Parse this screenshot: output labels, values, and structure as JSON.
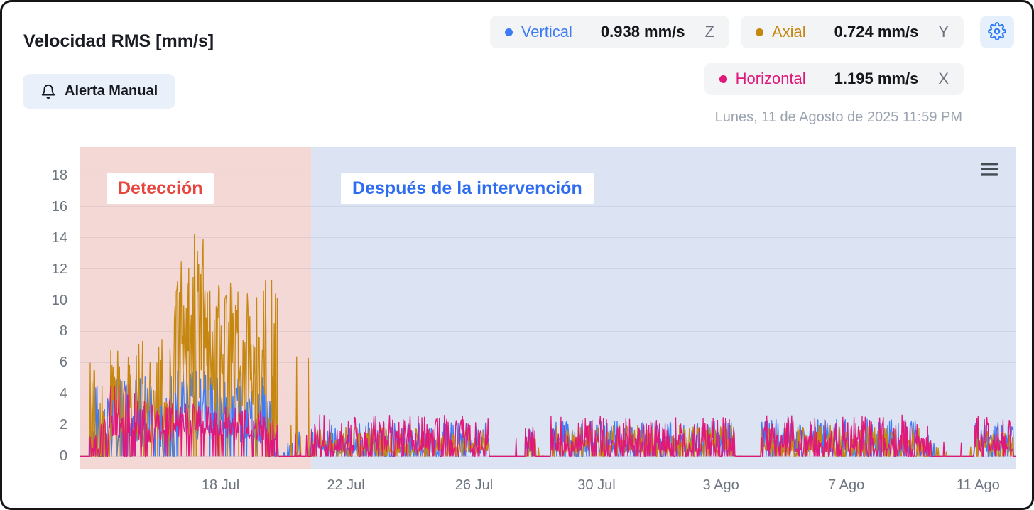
{
  "header": {
    "title": "Velocidad RMS [mm/s]",
    "alert_button_label": "Alerta Manual",
    "timestamp": "Lunes, 11 de Agosto de 2025 11:59 PM"
  },
  "legend": [
    {
      "name": "Vertical",
      "value": "0.938 mm/s",
      "axis": "Z",
      "color": "#3e7cf6"
    },
    {
      "name": "Axial",
      "value": "0.724 mm/s",
      "axis": "Y",
      "color": "#c5870f"
    },
    {
      "name": "Horizontal",
      "value": "1.195 mm/s",
      "axis": "X",
      "color": "#e0187b"
    }
  ],
  "icons": {
    "settings": "gear",
    "alert": "bell",
    "chart_menu": "hamburger-menu"
  },
  "colors": {
    "accent_blue": "#2f7df6",
    "badge_bg": "#f3f4f6",
    "alert_btn_bg": "#e9f0fa",
    "gear_btn_bg": "#e6f0fd",
    "muted_text": "#6d7580"
  },
  "chart_data": {
    "type": "line",
    "title": "Velocidad RMS [mm/s]",
    "ylabel": "mm/s",
    "units": "mm/s",
    "grid": true,
    "legend_position": "top-right",
    "ylim": [
      0,
      18
    ],
    "y_top": 19.8,
    "y_bottom": -0.8,
    "yticks": [
      0,
      2,
      4,
      6,
      8,
      10,
      12,
      14,
      16,
      18
    ],
    "xticks": [
      {
        "label": "18 Jul",
        "x": 0.15
      },
      {
        "label": "22 Jul",
        "x": 0.284
      },
      {
        "label": "26 Jul",
        "x": 0.421
      },
      {
        "label": "30 Jul",
        "x": 0.552
      },
      {
        "label": "3 Ago",
        "x": 0.685
      },
      {
        "label": "7 Ago",
        "x": 0.819
      },
      {
        "label": "11 Ago",
        "x": 0.96
      }
    ],
    "regions": [
      {
        "label": "Detección",
        "x0": 0,
        "x1": 0.247,
        "fill": "#f3d8d6",
        "label_color": "#e8453e"
      },
      {
        "label": "Después de la intervención",
        "x0": 0.247,
        "x1": 1,
        "fill": "#dce4f3",
        "label_color": "#2e6cf0"
      }
    ],
    "series": [
      {
        "name": "Vertical",
        "key": "v",
        "color": "#3e7cf6",
        "current_value": "0.938 mm/s",
        "axis": "Z"
      },
      {
        "name": "Axial",
        "key": "a",
        "color": "#c5870f",
        "current_value": "0.724 mm/s",
        "axis": "Y"
      },
      {
        "name": "Horizontal",
        "key": "h",
        "color": "#e0187b",
        "current_value": "1.195 mm/s",
        "axis": "X"
      }
    ],
    "sample_count": 1500,
    "segments": [
      {
        "x0": 0.01,
        "x1": 0.032,
        "density": 0.55,
        "skew": 1.0,
        "v": [
          0.2,
          4.6
        ],
        "a": [
          0.2,
          6.4
        ],
        "h": [
          0.2,
          2.4
        ]
      },
      {
        "x0": 0.032,
        "x1": 0.062,
        "density": 0.8,
        "skew": 1.2,
        "v": [
          0.6,
          5.0
        ],
        "a": [
          1.0,
          6.8
        ],
        "h": [
          1.2,
          4.6
        ]
      },
      {
        "x0": 0.062,
        "x1": 0.1,
        "density": 0.78,
        "skew": 1.2,
        "v": [
          0.6,
          5.2
        ],
        "a": [
          1.0,
          7.6
        ],
        "h": [
          0.8,
          3.8
        ]
      },
      {
        "x0": 0.1,
        "x1": 0.138,
        "density": 0.9,
        "skew": 1.0,
        "v": [
          1.0,
          5.6
        ],
        "a": [
          3.0,
          14.2
        ],
        "h": [
          1.2,
          3.4
        ]
      },
      {
        "x0": 0.138,
        "x1": 0.165,
        "density": 0.88,
        "skew": 1.1,
        "v": [
          1.0,
          5.2
        ],
        "a": [
          2.5,
          11.6
        ],
        "h": [
          1.2,
          3.2
        ]
      },
      {
        "x0": 0.165,
        "x1": 0.198,
        "density": 0.86,
        "skew": 1.1,
        "v": [
          0.8,
          5.4
        ],
        "a": [
          2.0,
          10.8
        ],
        "h": [
          1.0,
          3.2
        ]
      },
      {
        "x0": 0.198,
        "x1": 0.212,
        "density": 0.6,
        "skew": 1.1,
        "v": [
          0.4,
          4.0
        ],
        "a": [
          1.0,
          11.3
        ],
        "h": [
          0.5,
          2.6
        ]
      },
      {
        "x0": 0.212,
        "x1": 0.247,
        "density": 0.1,
        "skew": 1.5,
        "v": [
          0.0,
          2.0
        ],
        "a": [
          0.0,
          6.5
        ],
        "h": [
          0.0,
          2.0
        ]
      },
      {
        "x0": 0.247,
        "x1": 0.437,
        "density": 0.8,
        "skew": 1.6,
        "v": [
          0.2,
          2.2
        ],
        "a": [
          0.2,
          1.9
        ],
        "h": [
          0.3,
          2.7
        ]
      },
      {
        "x0": 0.437,
        "x1": 0.476,
        "density": 0.02,
        "skew": 2.0,
        "v": [
          0.0,
          0.8
        ],
        "a": [
          0.0,
          0.7
        ],
        "h": [
          0.0,
          1.2
        ]
      },
      {
        "x0": 0.476,
        "x1": 0.487,
        "density": 0.7,
        "skew": 1.2,
        "v": [
          0.2,
          1.8
        ],
        "a": [
          0.2,
          1.3
        ],
        "h": [
          0.3,
          2.3
        ]
      },
      {
        "x0": 0.487,
        "x1": 0.503,
        "density": 0.02,
        "skew": 2.0,
        "v": [
          0.0,
          0.8
        ],
        "a": [
          0.0,
          0.7
        ],
        "h": [
          0.0,
          1.2
        ]
      },
      {
        "x0": 0.503,
        "x1": 0.7,
        "density": 0.8,
        "skew": 1.6,
        "v": [
          0.2,
          2.3
        ],
        "a": [
          0.2,
          2.0
        ],
        "h": [
          0.3,
          2.6
        ]
      },
      {
        "x0": 0.7,
        "x1": 0.728,
        "density": 0.03,
        "skew": 2.0,
        "v": [
          0.0,
          0.8
        ],
        "a": [
          0.0,
          0.7
        ],
        "h": [
          0.0,
          1.2
        ]
      },
      {
        "x0": 0.728,
        "x1": 0.9,
        "density": 0.8,
        "skew": 1.6,
        "v": [
          0.2,
          2.4
        ],
        "a": [
          0.2,
          2.0
        ],
        "h": [
          0.3,
          2.7
        ]
      },
      {
        "x0": 0.9,
        "x1": 0.913,
        "density": 0.45,
        "skew": 1.5,
        "v": [
          0.1,
          1.6
        ],
        "a": [
          0.1,
          1.2
        ],
        "h": [
          0.2,
          2.0
        ]
      },
      {
        "x0": 0.913,
        "x1": 0.956,
        "density": 0.03,
        "skew": 2.0,
        "v": [
          0.0,
          0.8
        ],
        "a": [
          0.0,
          0.7
        ],
        "h": [
          0.0,
          1.2
        ]
      },
      {
        "x0": 0.956,
        "x1": 0.998,
        "density": 0.85,
        "skew": 1.4,
        "v": [
          0.2,
          2.2
        ],
        "a": [
          0.2,
          1.7
        ],
        "h": [
          0.3,
          2.6
        ]
      }
    ],
    "spikes": [
      {
        "series": "a",
        "x": 0.122,
        "v": 14.2
      },
      {
        "series": "a",
        "x": 0.205,
        "v": 11.3
      },
      {
        "series": "a",
        "x": 0.231,
        "v": 6.4
      },
      {
        "series": "a",
        "x": 0.244,
        "v": 6.3
      },
      {
        "series": "h",
        "x": 0.052,
        "v": 4.6
      }
    ]
  }
}
